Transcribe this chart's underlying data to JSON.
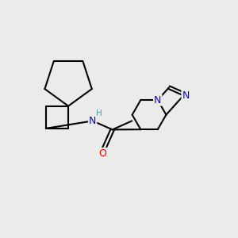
{
  "background_color": "#ebebeb",
  "bond_color": "#000000",
  "bond_width": 1.5,
  "atom_colors": {
    "N": "#0000ff",
    "O": "#ff0000",
    "H": "#4a9a9a",
    "C": "#000000"
  },
  "font_size_atom": 8.5,
  "fig_size": [
    3.0,
    3.0
  ],
  "dpi": 100
}
